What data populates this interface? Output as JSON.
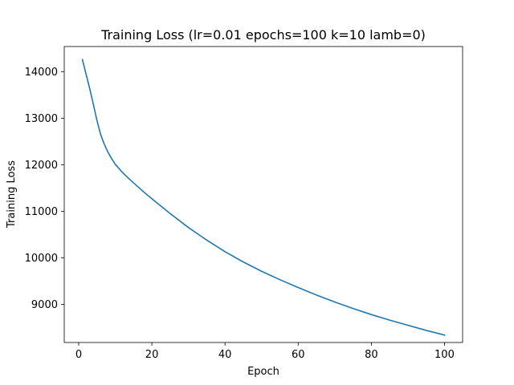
{
  "chart_data": {
    "type": "line",
    "title": "Training Loss (lr=0.01 epochs=100 k=10 lamb=0)",
    "xlabel": "Epoch",
    "ylabel": "Training Loss",
    "xlim": [
      -3.95,
      104.95
    ],
    "ylim": [
      8180,
      14540
    ],
    "xticks": [
      0,
      20,
      40,
      60,
      80,
      100
    ],
    "yticks": [
      9000,
      10000,
      11000,
      12000,
      13000,
      14000
    ],
    "grid": false,
    "series": [
      {
        "color": "#1f77b4",
        "x": [
          1,
          2,
          3,
          4,
          5,
          6,
          7,
          8,
          9,
          10,
          12,
          14,
          16,
          18,
          20,
          25,
          30,
          35,
          40,
          45,
          50,
          55,
          60,
          65,
          70,
          75,
          80,
          85,
          90,
          95,
          100
        ],
        "y": [
          14260,
          13950,
          13640,
          13300,
          12950,
          12650,
          12440,
          12270,
          12130,
          12010,
          11830,
          11680,
          11540,
          11400,
          11270,
          10950,
          10650,
          10380,
          10130,
          9910,
          9710,
          9530,
          9360,
          9200,
          9050,
          8910,
          8780,
          8660,
          8550,
          8440,
          8340
        ]
      }
    ]
  }
}
